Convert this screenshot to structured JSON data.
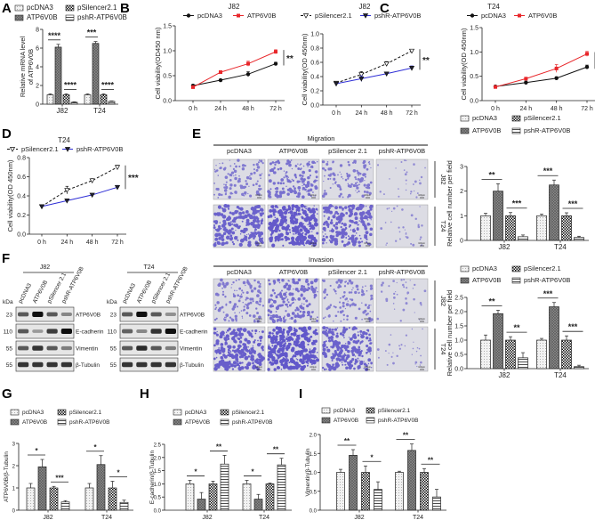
{
  "panel_labels": [
    "A",
    "B",
    "C",
    "D",
    "E",
    "F",
    "G",
    "H",
    "I"
  ],
  "groups": {
    "overexpression": [
      "pcDNA3",
      "ATP6V0B"
    ],
    "knockdown": [
      "pSilencer2.1",
      "pshR-ATP6V0B"
    ]
  },
  "colors": {
    "pcDNA3": "#111111",
    "ATP6V0B": "#e8262a",
    "pSilencer2.1": "#111111",
    "pshR-ATP6V0B": "#2e2ed6",
    "stain": "#5a4fc8"
  },
  "chart_data": [
    {
      "id": "A",
      "type": "bar",
      "ylabel": [
        "Relative mRNA level",
        "of ATP6V0B"
      ],
      "ylim": [
        0,
        8
      ],
      "yticks": [
        0,
        2,
        4,
        6,
        8
      ],
      "decimals": 0,
      "categories": [
        "J82",
        "T24"
      ],
      "series": [
        {
          "name": "pcDNA3",
          "values": [
            1.0,
            1.0
          ],
          "errors": [
            0.1,
            0.1
          ]
        },
        {
          "name": "ATP6V0B",
          "values": [
            6.1,
            6.5
          ],
          "errors": [
            0.3,
            0.2
          ]
        },
        {
          "name": "pSilencer2.1",
          "values": [
            1.0,
            1.0
          ],
          "errors": [
            0.1,
            0.1
          ]
        },
        {
          "name": "pshR-ATP6V0B",
          "values": [
            0.2,
            0.3
          ],
          "errors": [
            0.05,
            0.05
          ]
        }
      ],
      "significance": [
        {
          "category": 0,
          "pair": [
            0,
            1
          ],
          "label": "****"
        },
        {
          "category": 0,
          "pair": [
            2,
            3
          ],
          "label": "****"
        },
        {
          "category": 1,
          "pair": [
            0,
            1
          ],
          "label": "***"
        },
        {
          "category": 1,
          "pair": [
            2,
            3
          ],
          "label": "****"
        }
      ]
    },
    {
      "id": "B1",
      "type": "line",
      "title": "J82",
      "ylabel": "Cell viability(OD450 nm)",
      "ylim": [
        0,
        1.5
      ],
      "yticks": [
        0,
        0.5,
        1.0,
        1.5
      ],
      "decimals": 1,
      "x": [
        "0 h",
        "24 h",
        "48 h",
        "72 h"
      ],
      "series": [
        {
          "name": "pcDNA3",
          "values": [
            0.3,
            0.41,
            0.53,
            0.74
          ],
          "errors": [
            0.02,
            0.02,
            0.05,
            0.03
          ]
        },
        {
          "name": "ATP6V0B",
          "values": [
            0.27,
            0.57,
            0.74,
            0.98
          ],
          "errors": [
            0.02,
            0.03,
            0.05,
            0.04
          ]
        }
      ],
      "significance": "**"
    },
    {
      "id": "B2",
      "type": "line",
      "title": "J82",
      "ylabel": "Cell viability(OD 450nm)",
      "ylim": [
        0,
        1.0
      ],
      "yticks": [
        0,
        0.2,
        0.4,
        0.6,
        0.8,
        1.0
      ],
      "decimals": 1,
      "x": [
        "0 h",
        "24 h",
        "48 h",
        "72 h"
      ],
      "series": [
        {
          "name": "pSilencer2.1",
          "values": [
            0.31,
            0.43,
            0.58,
            0.76
          ],
          "errors": [
            0.02,
            0.04,
            0.03,
            0.02
          ]
        },
        {
          "name": "pshR-ATP6V0B",
          "values": [
            0.3,
            0.37,
            0.44,
            0.52
          ],
          "errors": [
            0.02,
            0.04,
            0.02,
            0.03
          ]
        }
      ],
      "significance": "**"
    },
    {
      "id": "C",
      "type": "line",
      "title": "T24",
      "ylabel": "Cell viability(OD 450nm)",
      "ylim": [
        0,
        1.5
      ],
      "yticks": [
        0,
        0.5,
        1.0,
        1.5
      ],
      "decimals": 1,
      "x": [
        "0 h",
        "24 h",
        "48 h",
        "72 h"
      ],
      "series": [
        {
          "name": "pcDNA3",
          "values": [
            0.29,
            0.37,
            0.46,
            0.69
          ],
          "errors": [
            0.02,
            0.03,
            0.03,
            0.04
          ]
        },
        {
          "name": "ATP6V0B",
          "values": [
            0.28,
            0.45,
            0.66,
            0.96
          ],
          "errors": [
            0.02,
            0.03,
            0.08,
            0.05
          ]
        }
      ],
      "significance": "**"
    },
    {
      "id": "D",
      "type": "line",
      "title": "T24",
      "ylabel": "Cell viability(OD 450nm)",
      "ylim": [
        0,
        0.8
      ],
      "yticks": [
        0,
        0.2,
        0.4,
        0.6,
        0.8
      ],
      "decimals": 1,
      "x": [
        "0 h",
        "24 h",
        "48 h",
        "72 h"
      ],
      "series": [
        {
          "name": "pSilencer2.1",
          "values": [
            0.29,
            0.46,
            0.56,
            0.7
          ],
          "errors": [
            0.01,
            0.04,
            0.02,
            0.02
          ]
        },
        {
          "name": "pshR-ATP6V0B",
          "values": [
            0.29,
            0.35,
            0.41,
            0.49
          ],
          "errors": [
            0.01,
            0.01,
            0.01,
            0.02
          ]
        }
      ],
      "significance": "***"
    },
    {
      "id": "E1",
      "type": "bar",
      "ylabel": [
        "Relative cell number per field"
      ],
      "ylim": [
        0,
        3
      ],
      "yticks": [
        0,
        1,
        2,
        3
      ],
      "decimals": 0,
      "categories": [
        "J82",
        "T24"
      ],
      "series": [
        {
          "name": "pcDNA3",
          "values": [
            1.0,
            1.0
          ],
          "errors": [
            0.1,
            0.07
          ]
        },
        {
          "name": "ATP6V0B",
          "values": [
            2.0,
            2.25
          ],
          "errors": [
            0.3,
            0.2
          ]
        },
        {
          "name": "pSilencer2.1",
          "values": [
            1.0,
            1.0
          ],
          "errors": [
            0.13,
            0.12
          ]
        },
        {
          "name": "pshR-ATP6V0B",
          "values": [
            0.15,
            0.12
          ],
          "errors": [
            0.07,
            0.05
          ]
        }
      ],
      "significance": [
        {
          "category": 0,
          "pair": [
            0,
            1
          ],
          "label": "**"
        },
        {
          "category": 0,
          "pair": [
            2,
            3
          ],
          "label": "***"
        },
        {
          "category": 1,
          "pair": [
            0,
            1
          ],
          "label": "***"
        },
        {
          "category": 1,
          "pair": [
            2,
            3
          ],
          "label": "***"
        }
      ]
    },
    {
      "id": "E2",
      "type": "bar",
      "ylabel": [
        "Relative cell number per field"
      ],
      "ylim": [
        0,
        2.5
      ],
      "yticks": [
        0,
        0.5,
        1.0,
        1.5,
        2.0,
        2.5
      ],
      "decimals": 1,
      "categories": [
        "J82",
        "T24"
      ],
      "series": [
        {
          "name": "pcDNA3",
          "values": [
            1.0,
            1.0
          ],
          "errors": [
            0.18,
            0.06
          ]
        },
        {
          "name": "ATP6V0B",
          "values": [
            1.93,
            2.17
          ],
          "errors": [
            0.12,
            0.15
          ]
        },
        {
          "name": "pSilencer2.1",
          "values": [
            1.0,
            1.0
          ],
          "errors": [
            0.12,
            0.15
          ]
        },
        {
          "name": "pshR-ATP6V0B",
          "values": [
            0.38,
            0.07
          ],
          "errors": [
            0.18,
            0.05
          ]
        }
      ],
      "significance": [
        {
          "category": 0,
          "pair": [
            0,
            1
          ],
          "label": "**"
        },
        {
          "category": 0,
          "pair": [
            2,
            3
          ],
          "label": "**"
        },
        {
          "category": 1,
          "pair": [
            0,
            1
          ],
          "label": "***"
        },
        {
          "category": 1,
          "pair": [
            2,
            3
          ],
          "label": "***"
        }
      ]
    },
    {
      "id": "G",
      "type": "bar",
      "ylabel": [
        "ATP6V0B/β-Tubulin"
      ],
      "ylim": [
        0,
        3
      ],
      "yticks": [
        0,
        1,
        2,
        3
      ],
      "decimals": 0,
      "categories": [
        "J82",
        "T24"
      ],
      "series": [
        {
          "name": "pcDNA3",
          "values": [
            1.0,
            1.0
          ],
          "errors": [
            0.2,
            0.2
          ]
        },
        {
          "name": "ATP6V0B",
          "values": [
            1.95,
            2.05
          ],
          "errors": [
            0.33,
            0.4
          ]
        },
        {
          "name": "pSilencer2.1",
          "values": [
            1.0,
            1.0
          ],
          "errors": [
            0.07,
            0.3
          ]
        },
        {
          "name": "pshR-ATP6V0B",
          "values": [
            0.37,
            0.35
          ],
          "errors": [
            0.06,
            0.1
          ]
        }
      ],
      "significance": [
        {
          "category": 0,
          "pair": [
            0,
            1
          ],
          "label": "*"
        },
        {
          "category": 0,
          "pair": [
            2,
            3
          ],
          "label": "***"
        },
        {
          "category": 1,
          "pair": [
            0,
            1
          ],
          "label": "*"
        },
        {
          "category": 1,
          "pair": [
            2,
            3
          ],
          "label": "*"
        }
      ]
    },
    {
      "id": "H",
      "type": "bar",
      "ylabel": [
        "E-cadherin/β-Tubulin"
      ],
      "ylim": [
        0,
        2.5
      ],
      "yticks": [
        0,
        0.5,
        1.0,
        1.5,
        2.0,
        2.5
      ],
      "decimals": 1,
      "categories": [
        "J82",
        "T24"
      ],
      "series": [
        {
          "name": "pcDNA3",
          "values": [
            1.0,
            1.0
          ],
          "errors": [
            0.13,
            0.13
          ]
        },
        {
          "name": "ATP6V0B",
          "values": [
            0.42,
            0.42
          ],
          "errors": [
            0.25,
            0.18
          ]
        },
        {
          "name": "pSilencer2.1",
          "values": [
            1.0,
            1.0
          ],
          "errors": [
            0.1,
            0.03
          ]
        },
        {
          "name": "pshR-ATP6V0B",
          "values": [
            1.75,
            1.72
          ],
          "errors": [
            0.33,
            0.25
          ]
        }
      ],
      "significance": [
        {
          "category": 0,
          "pair": [
            0,
            1
          ],
          "label": "*"
        },
        {
          "category": 0,
          "pair": [
            2,
            3
          ],
          "label": "**"
        },
        {
          "category": 1,
          "pair": [
            0,
            1
          ],
          "label": "*"
        },
        {
          "category": 1,
          "pair": [
            2,
            3
          ],
          "label": "**"
        }
      ]
    },
    {
      "id": "I",
      "type": "bar",
      "ylabel": [
        "Vimentin/β-Tubulin"
      ],
      "ylim": [
        0,
        2.0
      ],
      "yticks": [
        0,
        0.5,
        1.0,
        1.5,
        2.0
      ],
      "decimals": 1,
      "categories": [
        "J82",
        "T24"
      ],
      "series": [
        {
          "name": "pcDNA3",
          "values": [
            1.0,
            1.0
          ],
          "errors": [
            0.08,
            0.03
          ]
        },
        {
          "name": "ATP6V0B",
          "values": [
            1.45,
            1.58
          ],
          "errors": [
            0.15,
            0.17
          ]
        },
        {
          "name": "pSilencer2.1",
          "values": [
            1.0,
            1.0
          ],
          "errors": [
            0.17,
            0.1
          ]
        },
        {
          "name": "pshR-ATP6V0B",
          "values": [
            0.55,
            0.35
          ],
          "errors": [
            0.2,
            0.2
          ]
        }
      ],
      "significance": [
        {
          "category": 0,
          "pair": [
            0,
            1
          ],
          "label": "**"
        },
        {
          "category": 0,
          "pair": [
            2,
            3
          ],
          "label": "*"
        },
        {
          "category": 1,
          "pair": [
            0,
            1
          ],
          "label": "**"
        },
        {
          "category": 1,
          "pair": [
            2,
            3
          ],
          "label": "**"
        }
      ]
    }
  ],
  "microscopy": {
    "columns": [
      "pcDNA3",
      "ATP6V0B",
      "pSilencer 2.1",
      "pshR-ATP6V0B"
    ],
    "rows": [
      "J82",
      "T24"
    ],
    "scale_bar": "100μm",
    "assays": [
      {
        "title": "Migration",
        "stain_density": [
          [
            0.35,
            0.55,
            0.4,
            0.05
          ],
          [
            0.8,
            0.95,
            0.75,
            0.07
          ]
        ]
      },
      {
        "title": "Invasion",
        "stain_density": [
          [
            0.4,
            0.6,
            0.35,
            0.08
          ],
          [
            0.85,
            1.0,
            0.8,
            0.06
          ]
        ]
      }
    ]
  },
  "blots": {
    "kda_label": "kDa",
    "lanes": [
      "pcDNA3",
      "ATP6V0B",
      "pSilencer 2.1",
      "pshR-ATP6V0B"
    ],
    "markers": [
      "23",
      "110",
      "55",
      "55"
    ],
    "proteins": [
      "ATP6V0B",
      "E-cadherin",
      "Vimentin",
      "β-Tubulin"
    ],
    "cell_lines": [
      {
        "title": "J82",
        "band_intensity": [
          [
            0.6,
            1.0,
            0.6,
            0.35
          ],
          [
            0.6,
            0.25,
            0.75,
            1.0
          ],
          [
            0.6,
            0.8,
            0.6,
            0.4
          ],
          [
            0.8,
            0.8,
            0.8,
            0.8
          ]
        ]
      },
      {
        "title": "T24",
        "band_intensity": [
          [
            0.6,
            1.0,
            0.6,
            0.3
          ],
          [
            0.55,
            0.35,
            0.8,
            1.0
          ],
          [
            0.6,
            0.85,
            0.6,
            0.4
          ],
          [
            0.8,
            0.8,
            0.8,
            0.8
          ]
        ]
      }
    ]
  }
}
